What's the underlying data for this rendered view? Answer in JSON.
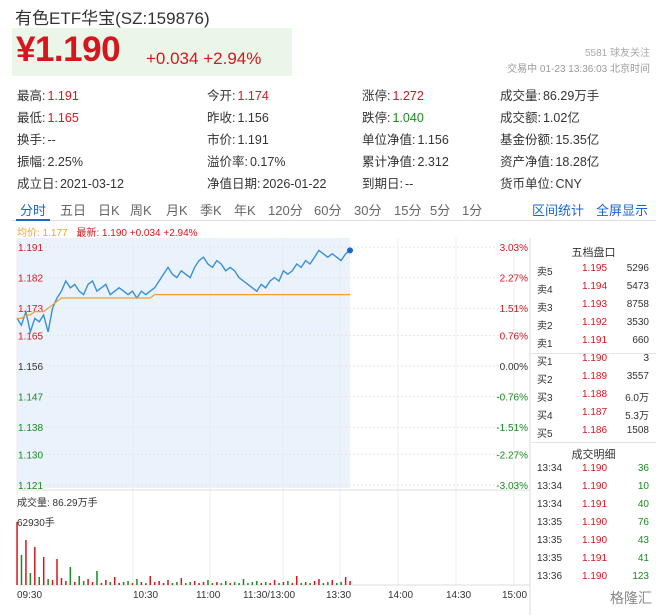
{
  "title": "有色ETF华宝(SZ:159876)",
  "quote": {
    "price": "¥1.190",
    "change": "+0.034",
    "pct": "+2.94%"
  },
  "meta": {
    "followers": "5581 球友关注",
    "status": "交易中 01-23 13:36:03 北京时间"
  },
  "stats": [
    [
      {
        "label": "最高:",
        "value": "1.191",
        "color": "red"
      },
      {
        "label": "今开:",
        "value": "1.174",
        "color": "red"
      },
      {
        "label": "涨停:",
        "value": "1.272",
        "color": "red"
      },
      {
        "label": "成交量:",
        "value": "86.29万手",
        "color": "plain"
      }
    ],
    [
      {
        "label": "最低:",
        "value": "1.165",
        "color": "red"
      },
      {
        "label": "昨收:",
        "value": "1.156",
        "color": "plain"
      },
      {
        "label": "跌停:",
        "value": "1.040",
        "color": "green"
      },
      {
        "label": "成交额:",
        "value": "1.02亿",
        "color": "plain"
      }
    ],
    [
      {
        "label": "换手:",
        "value": "--",
        "color": "plain"
      },
      {
        "label": "市价:",
        "value": "1.191",
        "color": "plain"
      },
      {
        "label": "单位净值:",
        "value": "1.156",
        "color": "plain"
      },
      {
        "label": "基金份额:",
        "value": "15.35亿",
        "color": "plain"
      }
    ],
    [
      {
        "label": "振幅:",
        "value": "2.25%",
        "color": "plain"
      },
      {
        "label": "溢价率:",
        "value": "0.17%",
        "color": "plain"
      },
      {
        "label": "累计净值:",
        "value": "2.312",
        "color": "plain"
      },
      {
        "label": "资产净值:",
        "value": "18.28亿",
        "color": "plain"
      }
    ],
    [
      {
        "label": "成立日:",
        "value": "2021-03-12",
        "color": "plain"
      },
      {
        "label": "净值日期:",
        "value": "2026-01-22",
        "color": "plain"
      },
      {
        "label": "到期日:",
        "value": "--",
        "color": "plain"
      },
      {
        "label": "货币单位:",
        "value": "CNY",
        "color": "plain"
      }
    ]
  ],
  "tabs": [
    "分时",
    "五日",
    "日K",
    "周K",
    "月K",
    "季K",
    "年K",
    "120分",
    "60分",
    "30分",
    "15分",
    "5分",
    "1分"
  ],
  "tab_links": [
    "区间统计",
    "全屏显示"
  ],
  "legend": {
    "avg_label": "均价: 1.177",
    "latest_label": "最新: 1.190 +0.034 +2.94%"
  },
  "chart_data": {
    "type": "line",
    "ylabels": [
      "1.191",
      "1.182",
      "1.173",
      "1.165",
      "1.156",
      "1.147",
      "1.138",
      "1.130",
      "1.121"
    ],
    "pctlabels": [
      "3.03%",
      "2.27%",
      "1.51%",
      "0.76%",
      "0.00%",
      "-0.76%",
      "-1.51%",
      "-2.27%",
      "-3.03%"
    ],
    "ylim": [
      1.121,
      1.191
    ],
    "prev_close": 1.156,
    "price_series": [
      1.17,
      1.168,
      1.172,
      1.166,
      1.17,
      1.169,
      1.171,
      1.166,
      1.173,
      1.176,
      1.178,
      1.181,
      1.179,
      1.18,
      1.178,
      1.177,
      1.18,
      1.181,
      1.178,
      1.179,
      1.18,
      1.177,
      1.178,
      1.179,
      1.178,
      1.177,
      1.178,
      1.176,
      1.178,
      1.177,
      1.178,
      1.179,
      1.181,
      1.183,
      1.185,
      1.183,
      1.182,
      1.184,
      1.183,
      1.182,
      1.185,
      1.187,
      1.188,
      1.186,
      1.185,
      1.187,
      1.186,
      1.184,
      1.185,
      1.184,
      1.182,
      1.181,
      1.18,
      1.179,
      1.178,
      1.18,
      1.179,
      1.181,
      1.182,
      1.181,
      1.184,
      1.183,
      1.184,
      1.186,
      1.185,
      1.187,
      1.186,
      1.188,
      1.19,
      1.189,
      1.188,
      1.189,
      1.188,
      1.187,
      1.189,
      1.19
    ],
    "avg_series": [
      1.17,
      1.17,
      1.171,
      1.171,
      1.172,
      1.172,
      1.172,
      1.173,
      1.174,
      1.175,
      1.176,
      1.176,
      1.176,
      1.176,
      1.176,
      1.176,
      1.176,
      1.176,
      1.176,
      1.176,
      1.176,
      1.176,
      1.176,
      1.176,
      1.176,
      1.176,
      1.176,
      1.176,
      1.176,
      1.176,
      1.176,
      1.177,
      1.177,
      1.177,
      1.177,
      1.177,
      1.177,
      1.177,
      1.177,
      1.177,
      1.177,
      1.177,
      1.177,
      1.177,
      1.177,
      1.177,
      1.177,
      1.177,
      1.177,
      1.177,
      1.177,
      1.177,
      1.177,
      1.177,
      1.177,
      1.177,
      1.177,
      1.177,
      1.177,
      1.177,
      1.177,
      1.177,
      1.177,
      1.177,
      1.177,
      1.177,
      1.177,
      1.177,
      1.177,
      1.177,
      1.177,
      1.177,
      1.177,
      1.177,
      1.177,
      1.177
    ],
    "volume_max": 62930,
    "volume_series": [
      62930,
      30000,
      45000,
      12000,
      38000,
      8000,
      28000,
      6000,
      5000,
      26000,
      7000,
      4000,
      18000,
      3000,
      9000,
      4000,
      6000,
      3000,
      14000,
      2000,
      5000,
      3000,
      8000,
      2000,
      3000,
      4000,
      2000,
      6000,
      3000,
      2000,
      9000,
      3000,
      4000,
      2000,
      5000,
      2000,
      3000,
      7000,
      2000,
      3000,
      4000,
      2000,
      3000,
      5000,
      2000,
      3000,
      2000,
      4000,
      2000,
      3000,
      2000,
      6000,
      2000,
      3000,
      4000,
      2000,
      3000,
      2000,
      5000,
      2000,
      3000,
      4000,
      2000,
      9000,
      2000,
      3000,
      2000,
      4000,
      6000,
      2000,
      3000,
      5000,
      2000,
      3000,
      8000,
      4000
    ],
    "volume_label": "成交量: 86.29万手",
    "volume_max_label": "62930手",
    "xlabels": [
      "09:30",
      "10:30",
      "11:00",
      "11:30/13:00",
      "13:30",
      "14:00",
      "14:30",
      "15:00"
    ]
  },
  "orderbook": {
    "title": "五档盘口",
    "rows": [
      {
        "side": "卖5",
        "price": "1.195",
        "vol": "5296"
      },
      {
        "side": "卖4",
        "price": "1.194",
        "vol": "5473"
      },
      {
        "side": "卖3",
        "price": "1.193",
        "vol": "8758"
      },
      {
        "side": "卖2",
        "price": "1.192",
        "vol": "3530"
      },
      {
        "side": "卖1",
        "price": "1.191",
        "vol": "660"
      },
      {
        "side": "买1",
        "price": "1.190",
        "vol": "3"
      },
      {
        "side": "买2",
        "price": "1.189",
        "vol": "3557"
      },
      {
        "side": "买3",
        "price": "1.188",
        "vol": "6.0万"
      },
      {
        "side": "买4",
        "price": "1.187",
        "vol": "5.3万"
      },
      {
        "side": "买5",
        "price": "1.186",
        "vol": "1508"
      }
    ]
  },
  "trades": {
    "title": "成交明细",
    "rows": [
      {
        "time": "13:34",
        "price": "1.190",
        "vol": "36"
      },
      {
        "time": "13:34",
        "price": "1.190",
        "vol": "10"
      },
      {
        "time": "13:34",
        "price": "1.191",
        "vol": "40"
      },
      {
        "time": "13:35",
        "price": "1.190",
        "vol": "76"
      },
      {
        "time": "13:35",
        "price": "1.190",
        "vol": "43"
      },
      {
        "time": "13:35",
        "price": "1.191",
        "vol": "41"
      },
      {
        "time": "13:36",
        "price": "1.190",
        "vol": "123"
      }
    ]
  },
  "watermark": "格隆汇",
  "colors": {
    "up": "#d6161f",
    "down": "#1a8a22",
    "accent": "#1b66c9",
    "avg": "#f0a030"
  }
}
